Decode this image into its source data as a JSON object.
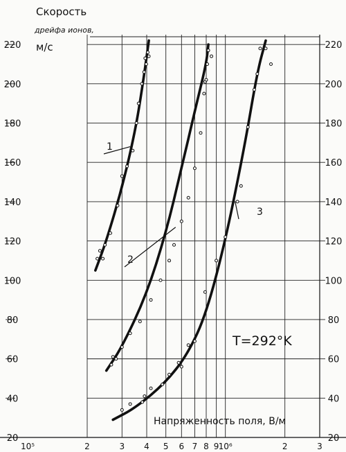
{
  "chart_data": {
    "type": "line",
    "ylabel_line1": "Скорость",
    "ylabel_line2": "дрейфа ионов,",
    "yunit": "м/с",
    "xlabel": "Напряженность поля, В/м",
    "annotation": "T=292°K",
    "x_scale": "log",
    "xlim": [
      100000,
      3000000
    ],
    "ylim": [
      20,
      225
    ],
    "grid": true,
    "y_ticks": [
      20,
      40,
      60,
      80,
      100,
      120,
      140,
      160,
      180,
      200,
      220
    ],
    "y_tick_labels": [
      "20",
      "40",
      "60",
      "80",
      "100",
      "120",
      "140",
      "160",
      "180",
      "200",
      "220"
    ],
    "x_ticks": [
      100000,
      200000,
      300000,
      400000,
      500000,
      600000,
      700000,
      800000,
      900000,
      1000000,
      2000000,
      3000000
    ],
    "x_tick_labels": [
      "10⁵",
      "2",
      "3",
      "4",
      "5",
      "6",
      "7",
      "8",
      "9",
      "10⁶",
      "2",
      "3"
    ],
    "series": [
      {
        "name": "1",
        "curve": [
          [
            220000,
            105
          ],
          [
            250000,
            120
          ],
          [
            300000,
            147
          ],
          [
            350000,
            176
          ],
          [
            380000,
            198
          ],
          [
            410000,
            222
          ]
        ],
        "points": [
          [
            225000,
            111
          ],
          [
            232000,
            115
          ],
          [
            240000,
            111
          ],
          [
            246000,
            118
          ],
          [
            262000,
            124
          ],
          [
            285000,
            138
          ],
          [
            300000,
            153
          ],
          [
            318000,
            158
          ],
          [
            340000,
            166
          ],
          [
            355000,
            180
          ],
          [
            364000,
            190
          ],
          [
            378000,
            200
          ],
          [
            388000,
            206
          ],
          [
            393000,
            213
          ],
          [
            398000,
            210
          ],
          [
            405000,
            216
          ],
          [
            410000,
            214
          ]
        ]
      },
      {
        "name": "2",
        "curve": [
          [
            250000,
            54
          ],
          [
            300000,
            66
          ],
          [
            400000,
            93
          ],
          [
            500000,
            124
          ],
          [
            600000,
            157
          ],
          [
            700000,
            186
          ],
          [
            800000,
            210
          ],
          [
            820000,
            220
          ]
        ],
        "points": [
          [
            265000,
            57
          ],
          [
            270000,
            61
          ],
          [
            280000,
            60
          ],
          [
            300000,
            66
          ],
          [
            330000,
            73
          ],
          [
            370000,
            79
          ],
          [
            420000,
            90
          ],
          [
            470000,
            100
          ],
          [
            520000,
            110
          ],
          [
            550000,
            118
          ],
          [
            600000,
            130
          ],
          [
            650000,
            142
          ],
          [
            700000,
            157
          ],
          [
            750000,
            175
          ],
          [
            780000,
            195
          ],
          [
            790000,
            201
          ],
          [
            800000,
            202
          ],
          [
            810000,
            210
          ],
          [
            820000,
            217
          ],
          [
            850000,
            214
          ]
        ]
      },
      {
        "name": "3",
        "curve": [
          [
            270000,
            29
          ],
          [
            350000,
            35
          ],
          [
            500000,
            48
          ],
          [
            650000,
            63
          ],
          [
            800000,
            83
          ],
          [
            1000000,
            120
          ],
          [
            1250000,
            168
          ],
          [
            1450000,
            206
          ],
          [
            1600000,
            222
          ]
        ],
        "points": [
          [
            300000,
            34
          ],
          [
            330000,
            37
          ],
          [
            380000,
            38
          ],
          [
            390000,
            41
          ],
          [
            420000,
            45
          ],
          [
            480000,
            47
          ],
          [
            520000,
            52
          ],
          [
            580000,
            58
          ],
          [
            600000,
            56
          ],
          [
            650000,
            67
          ],
          [
            700000,
            69
          ],
          [
            790000,
            94
          ],
          [
            900000,
            110
          ],
          [
            1000000,
            122
          ],
          [
            1150000,
            140
          ],
          [
            1200000,
            148
          ],
          [
            1300000,
            178
          ],
          [
            1400000,
            197
          ],
          [
            1450000,
            205
          ],
          [
            1500000,
            218
          ],
          [
            1600000,
            218
          ],
          [
            1700000,
            210
          ]
        ]
      }
    ]
  }
}
